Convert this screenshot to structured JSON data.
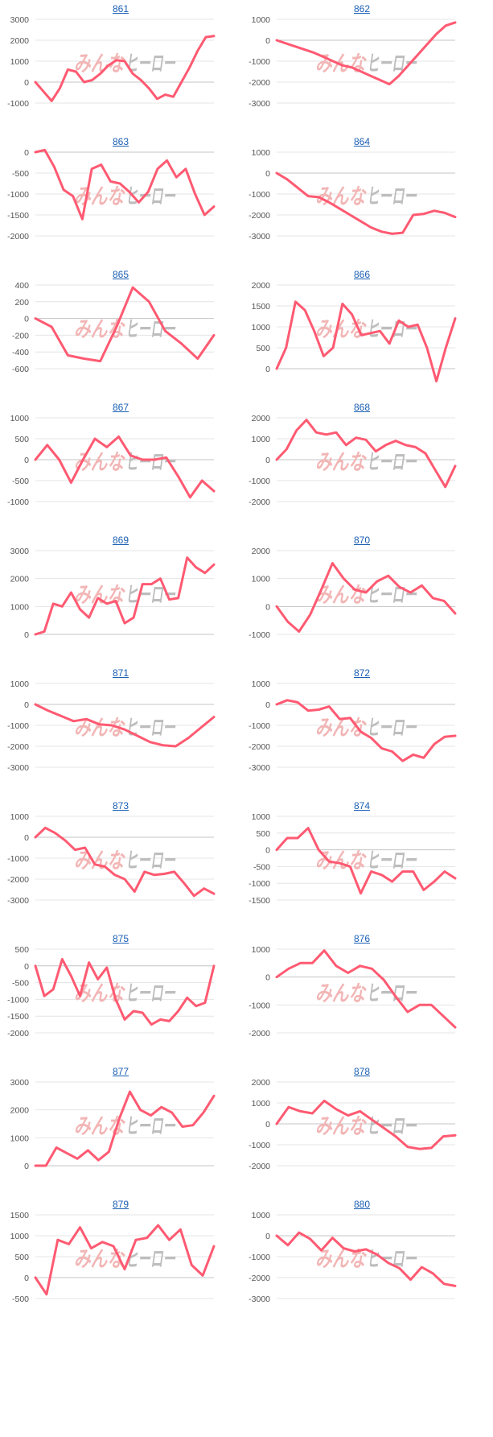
{
  "watermark": {
    "part1": "みんな",
    "part2": "ヒーロー"
  },
  "style": {
    "line_color": "#ff5a72"
  },
  "chart_data": [
    {
      "type": "line",
      "title": "861",
      "ylim": [
        -1000,
        3000
      ],
      "yticks": [
        3000,
        2000,
        1000,
        0,
        -1000
      ],
      "values": [
        0,
        -450,
        -900,
        -300,
        600,
        500,
        0,
        100,
        400,
        800,
        1050,
        1000,
        400,
        100,
        -300,
        -800,
        -600,
        -700,
        0,
        700,
        1500,
        2150,
        2200
      ]
    },
    {
      "type": "line",
      "title": "862",
      "ylim": [
        -3000,
        1000
      ],
      "yticks": [
        1000,
        0,
        -1000,
        -2000,
        -3000
      ],
      "values": [
        0,
        -150,
        -300,
        -450,
        -600,
        -800,
        -1000,
        -1200,
        -1300,
        -1500,
        -1700,
        -1900,
        -2100,
        -1700,
        -1200,
        -700,
        -200,
        300,
        700,
        850
      ]
    },
    {
      "type": "line",
      "title": "863",
      "ylim": [
        -2000,
        0
      ],
      "yticks": [
        0,
        -500,
        -1000,
        -1500,
        -2000
      ],
      "values": [
        0,
        50,
        -350,
        -900,
        -1050,
        -1600,
        -400,
        -300,
        -700,
        -750,
        -950,
        -1200,
        -950,
        -400,
        -200,
        -600,
        -400,
        -1000,
        -1500,
        -1300
      ]
    },
    {
      "type": "line",
      "title": "864",
      "ylim": [
        -3000,
        1000
      ],
      "yticks": [
        1000,
        0,
        -1000,
        -2000,
        -3000
      ],
      "values": [
        0,
        -300,
        -700,
        -1100,
        -1150,
        -1400,
        -1700,
        -2000,
        -2300,
        -2600,
        -2800,
        -2900,
        -2850,
        -2000,
        -1950,
        -1800,
        -1900,
        -2100
      ]
    },
    {
      "type": "line",
      "title": "865",
      "ylim": [
        -600,
        400
      ],
      "yticks": [
        400,
        200,
        0,
        -200,
        -400,
        -600
      ],
      "values": [
        0,
        -100,
        -440,
        -480,
        -510,
        -100,
        370,
        200,
        -150,
        -300,
        -480,
        -200
      ]
    },
    {
      "type": "line",
      "title": "866",
      "ylim": [
        0,
        2000
      ],
      "yticks": [
        2000,
        1500,
        1000,
        500,
        0
      ],
      "values": [
        0,
        500,
        1600,
        1400,
        900,
        300,
        500,
        1550,
        1300,
        800,
        850,
        900,
        600,
        1150,
        1000,
        1050,
        500,
        -300,
        500,
        1200
      ]
    },
    {
      "type": "line",
      "title": "867",
      "ylim": [
        -1000,
        1000
      ],
      "yticks": [
        1000,
        500,
        0,
        -500,
        -1000
      ],
      "values": [
        0,
        350,
        0,
        -550,
        0,
        500,
        300,
        550,
        100,
        0,
        0,
        50,
        -400,
        -900,
        -500,
        -750
      ]
    },
    {
      "type": "line",
      "title": "868",
      "ylim": [
        -2000,
        2000
      ],
      "yticks": [
        2000,
        1000,
        0,
        -1000,
        -2000
      ],
      "values": [
        0,
        500,
        1400,
        1900,
        1300,
        1200,
        1300,
        700,
        1050,
        950,
        400,
        700,
        900,
        700,
        600,
        300,
        -500,
        -1300,
        -300
      ]
    },
    {
      "type": "line",
      "title": "869",
      "ylim": [
        0,
        3000
      ],
      "yticks": [
        3000,
        2000,
        1000,
        0
      ],
      "values": [
        0,
        100,
        1100,
        1000,
        1500,
        900,
        600,
        1300,
        1100,
        1200,
        400,
        600,
        1800,
        1800,
        2000,
        1250,
        1300,
        2750,
        2400,
        2200,
        2500
      ]
    },
    {
      "type": "line",
      "title": "870",
      "ylim": [
        -1000,
        2000
      ],
      "yticks": [
        2000,
        1000,
        0,
        -1000
      ],
      "values": [
        0,
        -550,
        -900,
        -300,
        600,
        1550,
        1000,
        600,
        500,
        900,
        1100,
        700,
        500,
        750,
        300,
        200,
        -250
      ]
    },
    {
      "type": "line",
      "title": "871",
      "ylim": [
        -3000,
        1000
      ],
      "yticks": [
        1000,
        0,
        -1000,
        -2000,
        -3000
      ],
      "values": [
        0,
        -300,
        -550,
        -800,
        -700,
        -950,
        -1000,
        -1200,
        -1500,
        -1800,
        -1950,
        -2000,
        -1600,
        -1100,
        -600
      ]
    },
    {
      "type": "line",
      "title": "872",
      "ylim": [
        -3000,
        1000
      ],
      "yticks": [
        1000,
        0,
        -1000,
        -2000,
        -3000
      ],
      "values": [
        0,
        200,
        100,
        -300,
        -250,
        -100,
        -700,
        -650,
        -1300,
        -1600,
        -2100,
        -2250,
        -2700,
        -2400,
        -2550,
        -1900,
        -1550,
        -1500
      ]
    },
    {
      "type": "line",
      "title": "873",
      "ylim": [
        -3000,
        1000
      ],
      "yticks": [
        1000,
        0,
        -1000,
        -2000,
        -3000
      ],
      "values": [
        0,
        450,
        200,
        -150,
        -600,
        -500,
        -1300,
        -1400,
        -1800,
        -2000,
        -2600,
        -1650,
        -1800,
        -1750,
        -1650,
        -2200,
        -2800,
        -2450,
        -2700
      ]
    },
    {
      "type": "line",
      "title": "874",
      "ylim": [
        -1500,
        1000
      ],
      "yticks": [
        1000,
        500,
        0,
        -500,
        -1000,
        -1500
      ],
      "values": [
        0,
        350,
        350,
        650,
        0,
        -350,
        -400,
        -500,
        -1300,
        -650,
        -750,
        -950,
        -650,
        -650,
        -1200,
        -950,
        -650,
        -850
      ]
    },
    {
      "type": "line",
      "title": "875",
      "ylim": [
        -2000,
        500
      ],
      "yticks": [
        500,
        0,
        -500,
        -1000,
        -1500,
        -2000
      ],
      "values": [
        0,
        -900,
        -700,
        200,
        -300,
        -900,
        100,
        -400,
        -50,
        -1000,
        -1600,
        -1350,
        -1400,
        -1750,
        -1600,
        -1650,
        -1350,
        -950,
        -1200,
        -1100,
        0
      ]
    },
    {
      "type": "line",
      "title": "876",
      "ylim": [
        -2000,
        1000
      ],
      "yticks": [
        1000,
        0,
        -1000,
        -2000
      ],
      "values": [
        0,
        300,
        500,
        500,
        950,
        400,
        150,
        400,
        300,
        -100,
        -700,
        -1250,
        -1000,
        -1000,
        -1400,
        -1800
      ]
    },
    {
      "type": "line",
      "title": "877",
      "ylim": [
        0,
        3000
      ],
      "yticks": [
        3000,
        2000,
        1000,
        0
      ],
      "values": [
        0,
        0,
        650,
        450,
        250,
        550,
        200,
        500,
        1700,
        2650,
        2000,
        1800,
        2100,
        1900,
        1400,
        1450,
        1900,
        2500
      ]
    },
    {
      "type": "line",
      "title": "878",
      "ylim": [
        -2000,
        2000
      ],
      "yticks": [
        2000,
        1000,
        0,
        -1000,
        -2000
      ],
      "values": [
        0,
        800,
        600,
        500,
        1100,
        700,
        400,
        600,
        200,
        -200,
        -600,
        -1100,
        -1200,
        -1150,
        -600,
        -550
      ]
    },
    {
      "type": "line",
      "title": "879",
      "ylim": [
        -500,
        1500
      ],
      "yticks": [
        1500,
        1000,
        500,
        0,
        -500
      ],
      "values": [
        0,
        -400,
        900,
        800,
        1200,
        700,
        850,
        750,
        200,
        900,
        950,
        1250,
        900,
        1150,
        300,
        50,
        750
      ]
    },
    {
      "type": "line",
      "title": "880",
      "ylim": [
        -3000,
        1000
      ],
      "yticks": [
        1000,
        0,
        -1000,
        -2000,
        -3000
      ],
      "values": [
        0,
        -450,
        150,
        -150,
        -700,
        -100,
        -600,
        -750,
        -650,
        -900,
        -1300,
        -1550,
        -2100,
        -1500,
        -1800,
        -2300,
        -2400
      ]
    }
  ]
}
